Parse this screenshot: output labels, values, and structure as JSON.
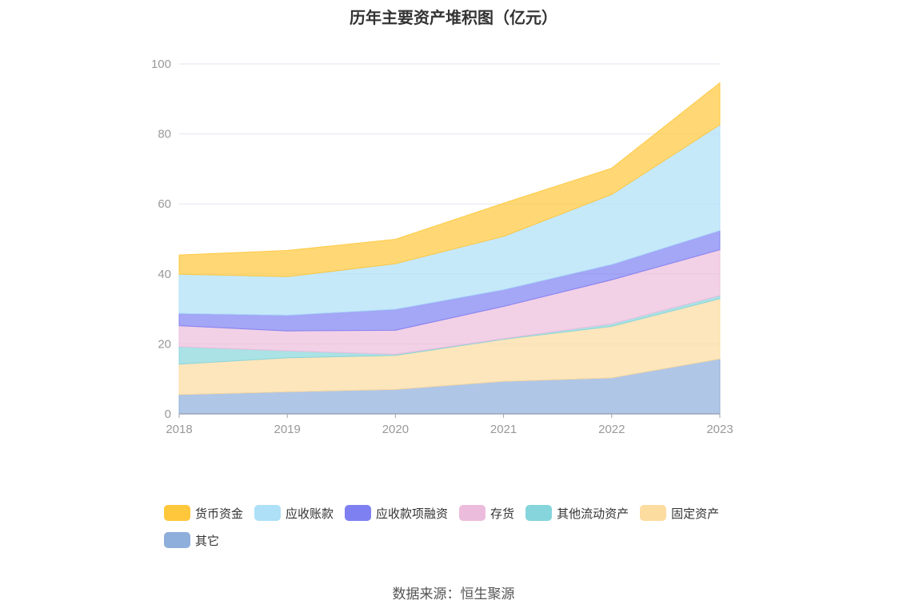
{
  "chart_data": {
    "type": "area",
    "stacked": true,
    "title": "历年主要资产堆积图（亿元）",
    "x": [
      "2018",
      "2019",
      "2020",
      "2021",
      "2022",
      "2023"
    ],
    "ylim": [
      0,
      100
    ],
    "yticks": [
      0,
      20,
      40,
      60,
      80,
      100
    ],
    "grid": true,
    "legend_position": "bottom",
    "series": [
      {
        "name": "其它",
        "color": "#8eaedb",
        "values": [
          5.5,
          6.3,
          7.0,
          9.3,
          10.3,
          15.7
        ]
      },
      {
        "name": "固定资产",
        "color": "#fddca0",
        "values": [
          8.7,
          9.7,
          9.7,
          12.0,
          14.7,
          17.2
        ]
      },
      {
        "name": "其他流动资产",
        "color": "#86d5dc",
        "values": [
          5.0,
          2.0,
          0.3,
          0.2,
          0.7,
          0.9
        ]
      },
      {
        "name": "存货",
        "color": "#ecbcdc",
        "values": [
          6.0,
          5.7,
          6.9,
          9.2,
          12.6,
          13.1
        ]
      },
      {
        "name": "应收款项融资",
        "color": "#7e80f2",
        "values": [
          3.5,
          4.5,
          6.0,
          4.8,
          4.4,
          5.5
        ]
      },
      {
        "name": "应收账款",
        "color": "#aee0f8",
        "values": [
          11.2,
          11.0,
          13.0,
          15.2,
          20.0,
          30.2
        ]
      },
      {
        "name": "货币资金",
        "color": "#ffc73b",
        "values": [
          5.5,
          7.5,
          7.0,
          9.5,
          7.5,
          12.0
        ]
      }
    ]
  },
  "legend_order": [
    "货币资金",
    "应收账款",
    "应收款项融资",
    "存货",
    "其他流动资产",
    "固定资产",
    "其它"
  ],
  "legend_labels": [
    "货币资金",
    "应收账款",
    "应收款项融资",
    "存货",
    "其他流动资产",
    "固定资产",
    "其它"
  ],
  "source": "数据来源：恒生聚源"
}
